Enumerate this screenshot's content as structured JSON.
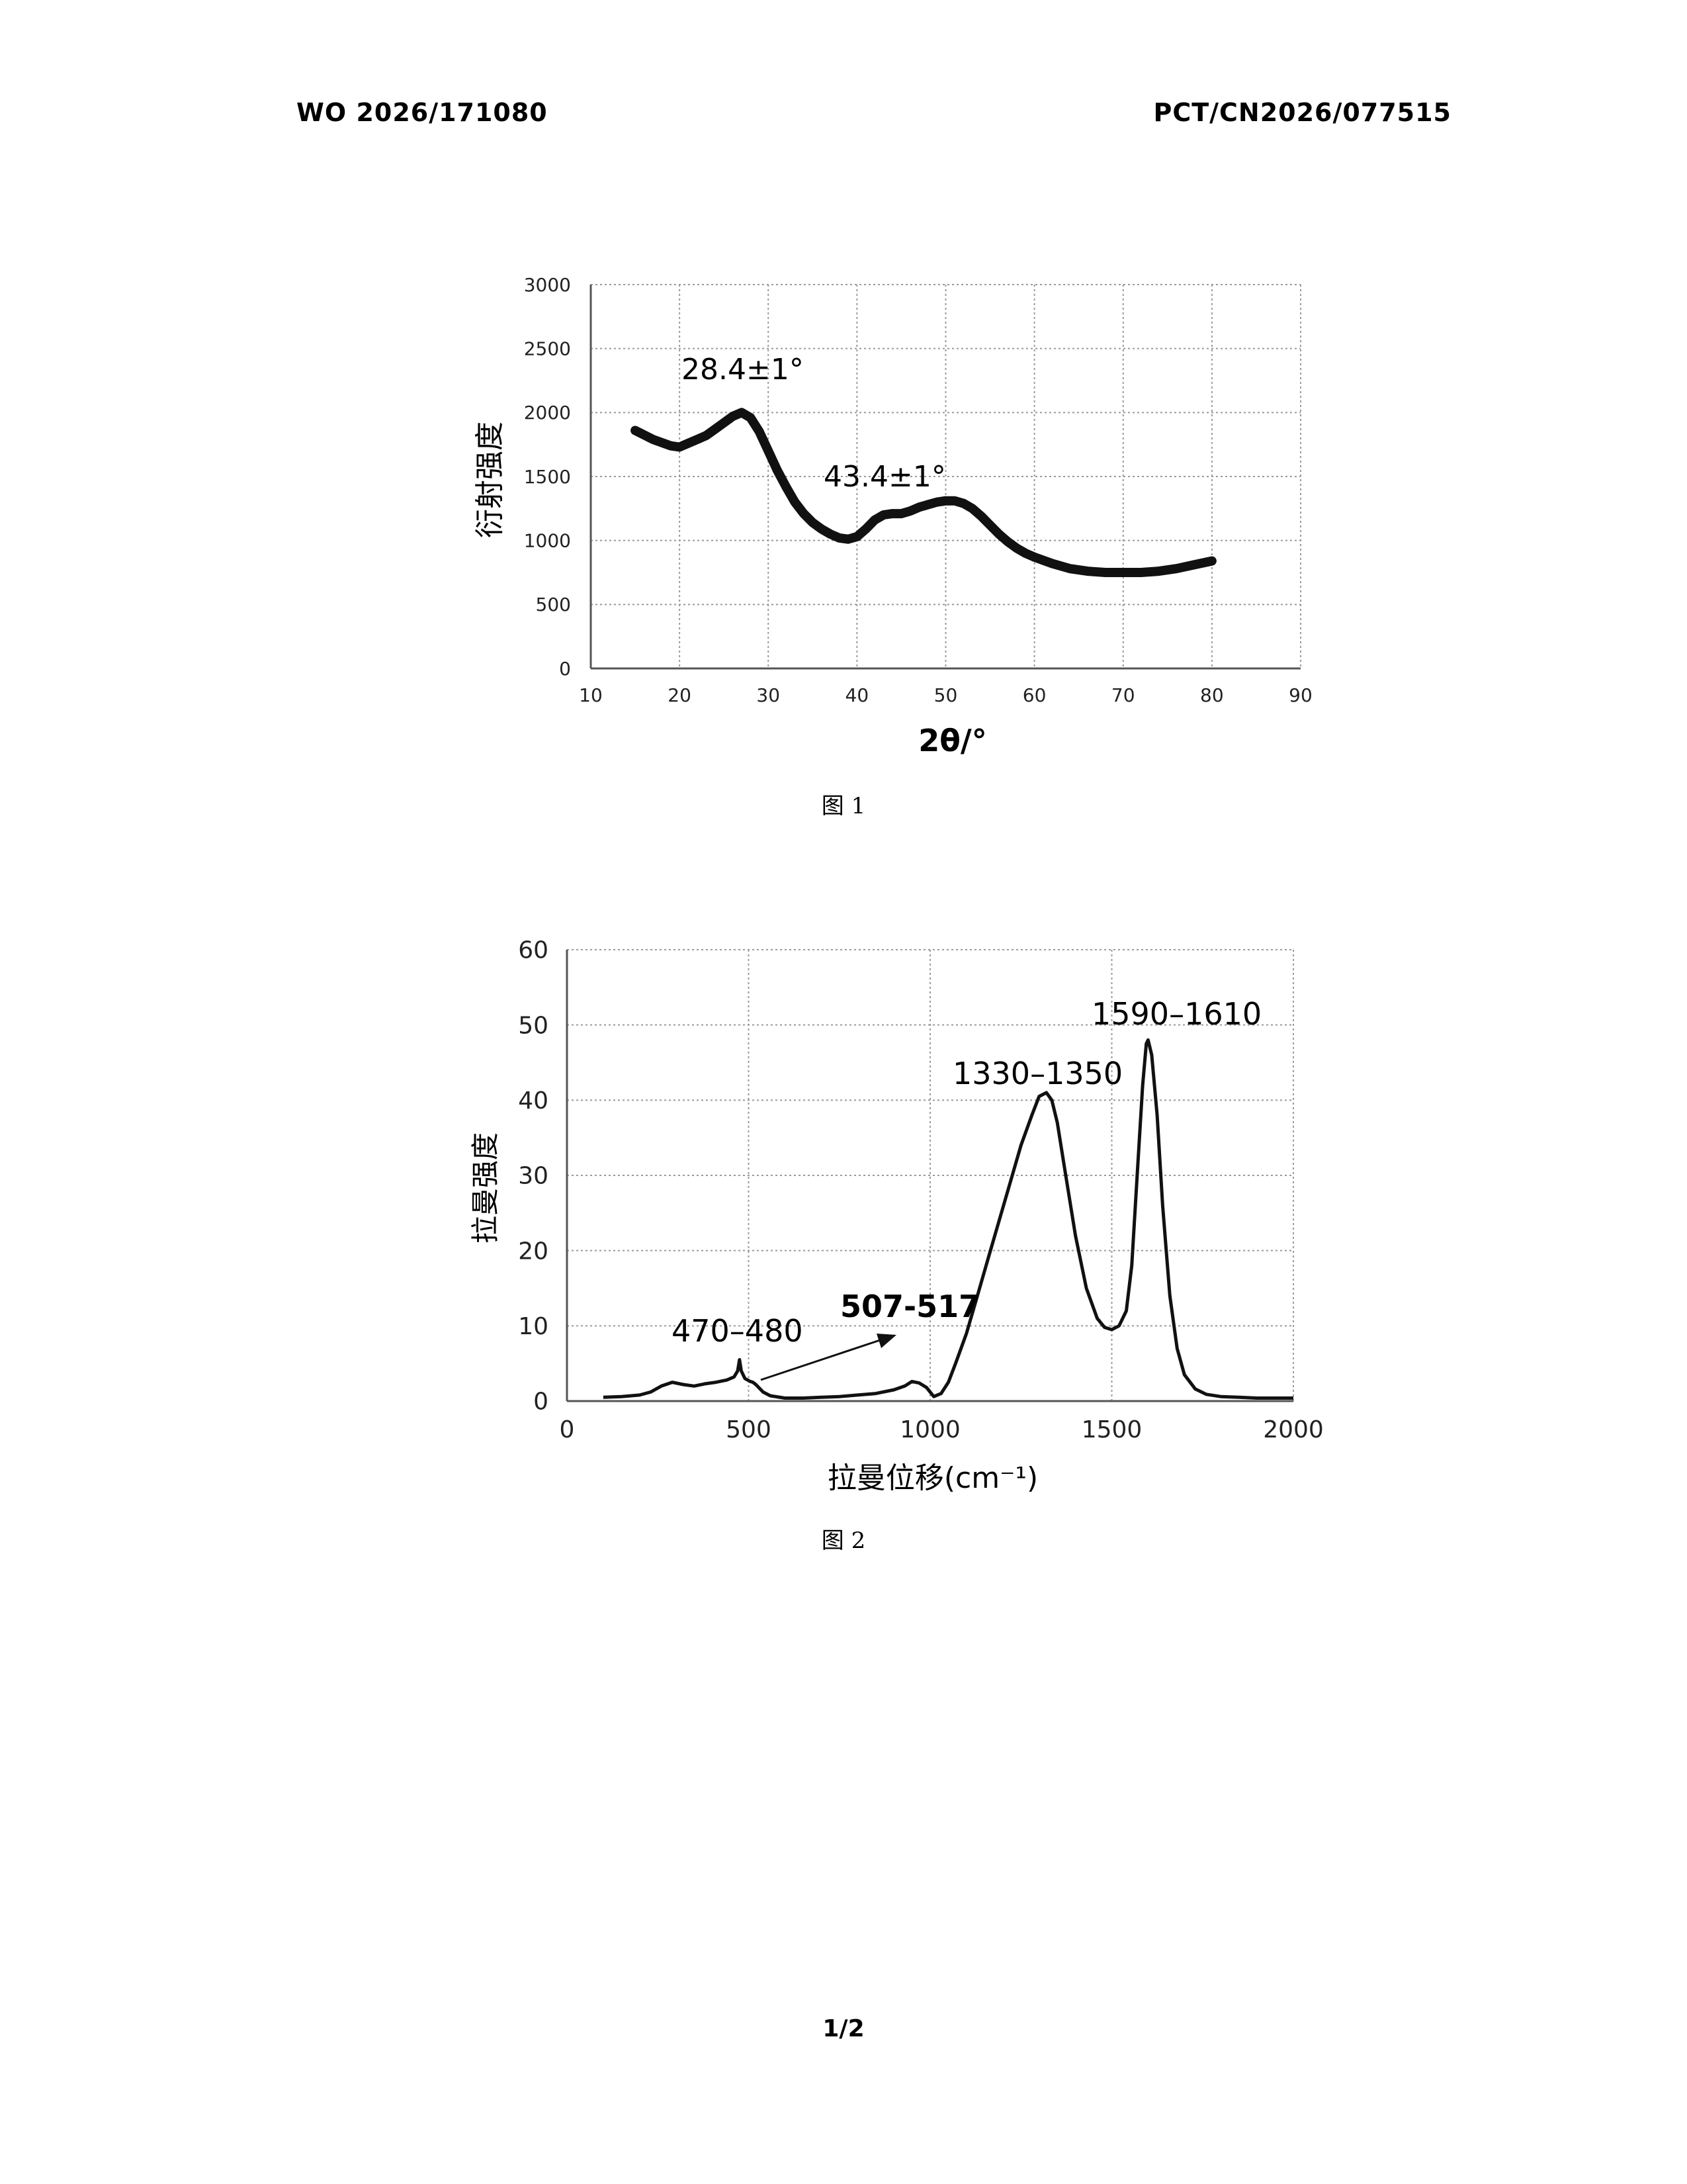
{
  "header": {
    "left": "WO 2026/171080",
    "right": "PCT/CN2026/077515"
  },
  "footer": {
    "page": "1/2"
  },
  "captions": {
    "fig1": "图 1",
    "fig2": "图 2"
  },
  "chart_data": [
    {
      "type": "line",
      "title": "",
      "xlabel": "2θ/°",
      "ylabel": "衍射强度",
      "xlim": [
        10,
        90
      ],
      "ylim": [
        0,
        3000
      ],
      "xticks": [
        10,
        20,
        30,
        40,
        50,
        60,
        70,
        80,
        90
      ],
      "yticks": [
        0,
        500,
        1000,
        1500,
        2000,
        2500,
        3000
      ],
      "grid": true,
      "line_color": "#111111",
      "series": [
        {
          "x": [
            15,
            17,
            19,
            20,
            21,
            22,
            23,
            24,
            25,
            26,
            27,
            28,
            29,
            30,
            31,
            32,
            33,
            34,
            35,
            36,
            37,
            38,
            39,
            40,
            41,
            42,
            43,
            44,
            45,
            46,
            47,
            48,
            49,
            50,
            51,
            52,
            53,
            54,
            55,
            56,
            57,
            58,
            59,
            60,
            62,
            64,
            66,
            68,
            70,
            72,
            74,
            76,
            78,
            80
          ],
          "y": [
            1860,
            1790,
            1740,
            1730,
            1760,
            1790,
            1820,
            1870,
            1920,
            1970,
            2000,
            1960,
            1850,
            1700,
            1550,
            1420,
            1300,
            1210,
            1140,
            1090,
            1050,
            1020,
            1010,
            1030,
            1090,
            1160,
            1200,
            1210,
            1210,
            1230,
            1260,
            1280,
            1300,
            1310,
            1310,
            1290,
            1250,
            1190,
            1120,
            1050,
            990,
            940,
            900,
            870,
            820,
            780,
            760,
            750,
            750,
            750,
            760,
            780,
            810,
            840
          ]
        }
      ],
      "annotations": [
        "28.4±1°",
        "43.4±1°"
      ]
    },
    {
      "type": "line",
      "title": "",
      "xlabel": "拉曼位移(cm⁻¹)",
      "ylabel": "拉曼强度",
      "xlim": [
        0,
        2000
      ],
      "ylim": [
        0,
        60
      ],
      "xticks": [
        0,
        500,
        1000,
        1500,
        2000
      ],
      "yticks": [
        0,
        10,
        20,
        30,
        40,
        50,
        60
      ],
      "grid": true,
      "line_color": "#111111",
      "series": [
        {
          "x": [
            100,
            150,
            200,
            230,
            260,
            290,
            320,
            350,
            380,
            410,
            440,
            460,
            470,
            475,
            480,
            490,
            505,
            512,
            520,
            540,
            560,
            600,
            650,
            700,
            750,
            800,
            850,
            900,
            930,
            950,
            970,
            990,
            1010,
            1030,
            1050,
            1070,
            1100,
            1130,
            1160,
            1190,
            1220,
            1250,
            1280,
            1300,
            1320,
            1335,
            1350,
            1370,
            1400,
            1430,
            1460,
            1480,
            1500,
            1520,
            1540,
            1555,
            1570,
            1585,
            1595,
            1600,
            1610,
            1625,
            1640,
            1660,
            1680,
            1700,
            1730,
            1760,
            1800,
            1850,
            1900,
            1950,
            2000
          ],
          "y": [
            0.5,
            0.6,
            0.8,
            1.2,
            2.0,
            2.5,
            2.2,
            2.0,
            2.3,
            2.5,
            2.8,
            3.2,
            4.0,
            5.5,
            4.0,
            3.0,
            2.6,
            2.5,
            2.2,
            1.2,
            0.7,
            0.4,
            0.4,
            0.5,
            0.6,
            0.8,
            1.0,
            1.5,
            2.0,
            2.6,
            2.4,
            1.8,
            0.6,
            1.0,
            2.5,
            5.0,
            9.0,
            14.0,
            19.0,
            24.0,
            29.0,
            34.0,
            38.0,
            40.5,
            41.0,
            40.0,
            37.0,
            31.0,
            22.0,
            15.0,
            11.0,
            9.8,
            9.5,
            10.0,
            12.0,
            18.0,
            30.0,
            42.0,
            47.5,
            48.0,
            46.0,
            38.0,
            26.0,
            14.0,
            7.0,
            3.5,
            1.6,
            0.9,
            0.6,
            0.5,
            0.4,
            0.4,
            0.4
          ]
        }
      ],
      "annotations": [
        "470–480",
        "507-517",
        "1330–1350",
        "1590–1610"
      ]
    }
  ]
}
